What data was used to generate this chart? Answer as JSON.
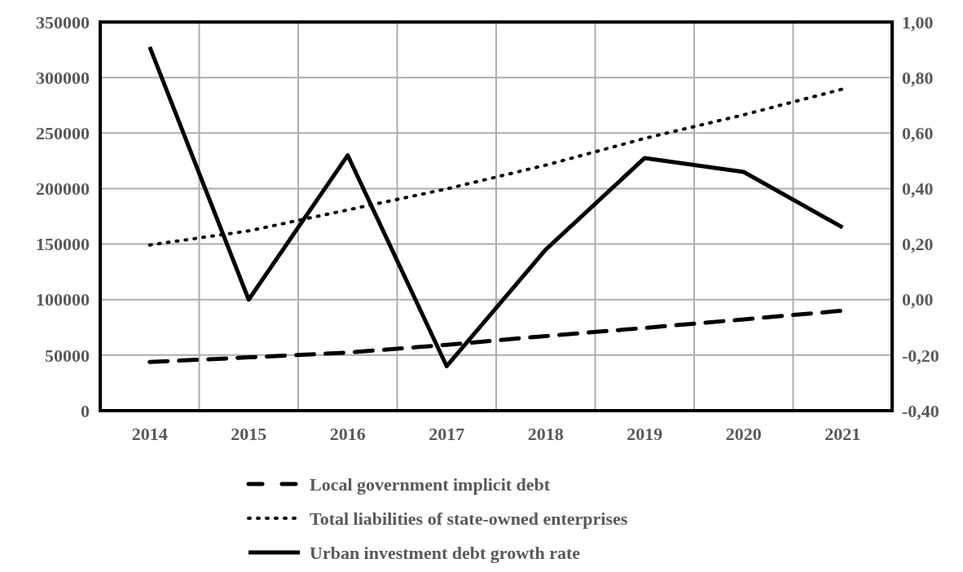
{
  "chart_data": {
    "type": "line",
    "categories": [
      "2014",
      "2015",
      "2016",
      "2017",
      "2018",
      "2019",
      "2020",
      "2021"
    ],
    "series": [
      {
        "name": "Local government implicit debt",
        "color": "#000000",
        "line_style": "dashed",
        "values": [
          43800,
          48000,
          52300,
          59300,
          67200,
          74500,
          82200,
          90100
        ]
      },
      {
        "name": "Total liabilities of state-owned enterprises",
        "color": "#000000",
        "line_style": "dotted",
        "values": [
          149200,
          161900,
          180800,
          199700,
          221100,
          245200,
          266400,
          289600
        ]
      },
      {
        "name": "Urban investment debt growth rate",
        "color": "#000000",
        "line_style": "solid",
        "axis": "y2",
        "values": [
          0.91,
          0.0,
          0.52,
          -0.24,
          0.18,
          0.51,
          0.46,
          0.26
        ]
      }
    ],
    "ylim": [
      0,
      350000
    ],
    "yticks": [
      0,
      50000,
      100000,
      150000,
      200000,
      250000,
      300000,
      350000
    ],
    "y2lim": [
      -0.4,
      1.0
    ],
    "y2ticks": [
      {
        "value": -0.4,
        "label": "-0,40"
      },
      {
        "value": -0.2,
        "label": "-0,20"
      },
      {
        "value": 0,
        "label": "0,00"
      },
      {
        "value": 0.2,
        "label": "0,20"
      },
      {
        "value": 0.4,
        "label": "0,40"
      },
      {
        "value": 0.6,
        "label": "0,60"
      },
      {
        "value": 0.8,
        "label": "0,80"
      },
      {
        "value": 1.0,
        "label": "1,00"
      }
    ],
    "grid": true,
    "legend": "bottom"
  }
}
